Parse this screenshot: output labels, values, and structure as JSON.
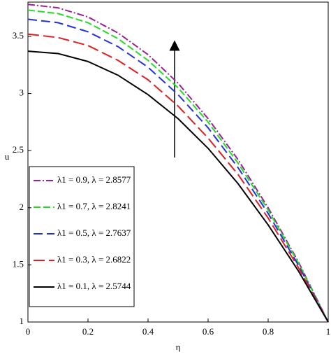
{
  "chart_data": {
    "type": "line",
    "xlabel": "η",
    "ylabel": "u",
    "x": [
      0,
      0.1,
      0.2,
      0.3,
      0.4,
      0.5,
      0.6,
      0.7,
      0.8,
      0.9,
      1
    ],
    "series": [
      {
        "name": "λ1 = 0.9, λ = 2.8577",
        "color": "#9b1f9b",
        "dash": "10,3,2,3",
        "values": [
          3.78,
          3.75,
          3.67,
          3.53,
          3.34,
          3.09,
          2.78,
          2.42,
          2.0,
          1.53,
          1
        ]
      },
      {
        "name": "λ1 = 0.7, λ = 2.8241",
        "color": "#22dd22",
        "dash": "10,4",
        "values": [
          3.73,
          3.7,
          3.62,
          3.48,
          3.29,
          3.05,
          2.75,
          2.39,
          1.98,
          1.52,
          1
        ]
      },
      {
        "name": "λ1 = 0.5, λ = 2.7637",
        "color": "#2233dd",
        "dash": "13,6",
        "values": [
          3.65,
          3.62,
          3.54,
          3.41,
          3.23,
          2.99,
          2.7,
          2.35,
          1.95,
          1.5,
          1
        ]
      },
      {
        "name": "λ1 = 0.3, λ = 2.6822",
        "color": "#e02020",
        "dash": "16,6",
        "values": [
          3.52,
          3.49,
          3.42,
          3.29,
          3.12,
          2.89,
          2.61,
          2.29,
          1.91,
          1.48,
          1
        ]
      },
      {
        "name": "λ1 = 0.1, λ = 2.5744",
        "color": "#000000",
        "dash": "none",
        "values": [
          3.37,
          3.35,
          3.28,
          3.16,
          2.99,
          2.78,
          2.52,
          2.21,
          1.85,
          1.45,
          1
        ]
      }
    ],
    "xlim": [
      0,
      1
    ],
    "xticks": [
      0,
      0.2,
      0.4,
      0.6,
      0.8,
      1
    ],
    "ylim": [
      1,
      3.8
    ],
    "yticks": [
      1,
      1.5,
      2,
      2.5,
      3,
      3.5
    ],
    "grid": false
  }
}
